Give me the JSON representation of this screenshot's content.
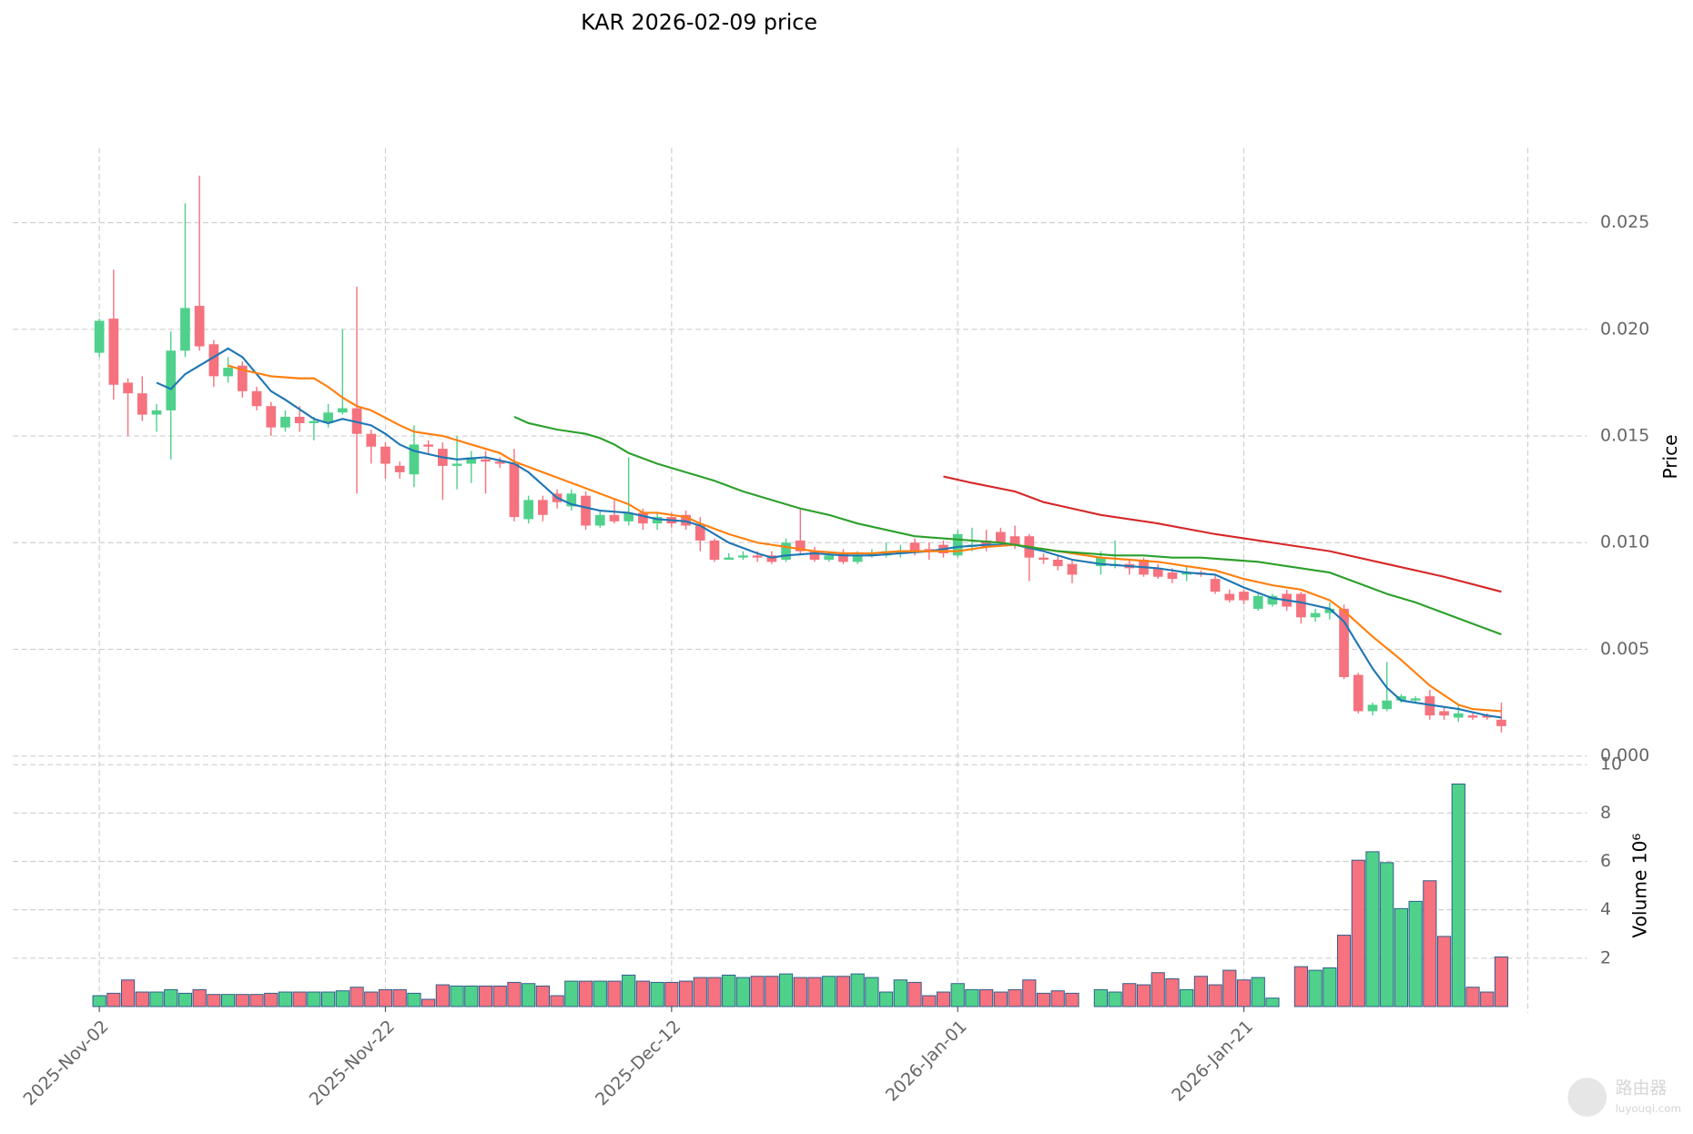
{
  "chart_data": {
    "type": "candlestick",
    "title": "KAR  2026-02-09  price",
    "ylabel": "Price",
    "grid": true,
    "up_color": "#4fd18b",
    "down_color": "#f5727e",
    "x": [
      "2025-Nov-02",
      "2025-Nov-03",
      "2025-Nov-04",
      "2025-Nov-05",
      "2025-Nov-06",
      "2025-Nov-07",
      "2025-Nov-08",
      "2025-Nov-09",
      "2025-Nov-10",
      "2025-Nov-11",
      "2025-Nov-12",
      "2025-Nov-13",
      "2025-Nov-14",
      "2025-Nov-15",
      "2025-Nov-16",
      "2025-Nov-17",
      "2025-Nov-18",
      "2025-Nov-19",
      "2025-Nov-20",
      "2025-Nov-21",
      "2025-Nov-22",
      "2025-Nov-23",
      "2025-Nov-24",
      "2025-Nov-25",
      "2025-Nov-26",
      "2025-Nov-27",
      "2025-Nov-28",
      "2025-Nov-29",
      "2025-Nov-30",
      "2025-Dec-01",
      "2025-Dec-02",
      "2025-Dec-03",
      "2025-Dec-04",
      "2025-Dec-05",
      "2025-Dec-06",
      "2025-Dec-07",
      "2025-Dec-08",
      "2025-Dec-09",
      "2025-Dec-10",
      "2025-Dec-11",
      "2025-Dec-12",
      "2025-Dec-13",
      "2025-Dec-14",
      "2025-Dec-15",
      "2025-Dec-16",
      "2025-Dec-17",
      "2025-Dec-18",
      "2025-Dec-19",
      "2025-Dec-20",
      "2025-Dec-21",
      "2025-Dec-22",
      "2025-Dec-23",
      "2025-Dec-24",
      "2025-Dec-25",
      "2025-Dec-26",
      "2025-Dec-27",
      "2025-Dec-28",
      "2025-Dec-29",
      "2025-Dec-30",
      "2025-Dec-31",
      "2026-Jan-01",
      "2026-Jan-02",
      "2026-Jan-03",
      "2026-Jan-04",
      "2026-Jan-05",
      "2026-Jan-06",
      "2026-Jan-07",
      "2026-Jan-08",
      "2026-Jan-09",
      "2026-Jan-10",
      "2026-Jan-11",
      "2026-Jan-12",
      "2026-Jan-13",
      "2026-Jan-14",
      "2026-Jan-15",
      "2026-Jan-16",
      "2026-Jan-17",
      "2026-Jan-18",
      "2026-Jan-19",
      "2026-Jan-20",
      "2026-Jan-21",
      "2026-Jan-22",
      "2026-Jan-23",
      "2026-Jan-24",
      "2026-Jan-25",
      "2026-Jan-26",
      "2026-Jan-27",
      "2026-Jan-28",
      "2026-Jan-29",
      "2026-Jan-30",
      "2026-Jan-31",
      "2026-Feb-01",
      "2026-Feb-02",
      "2026-Feb-03",
      "2026-Feb-04",
      "2026-Feb-05",
      "2026-Feb-06",
      "2026-Feb-07",
      "2026-Feb-08"
    ],
    "open": [
      0.0189,
      0.0205,
      0.0175,
      0.017,
      0.016,
      0.0162,
      0.019,
      0.0211,
      0.0193,
      0.0178,
      0.0183,
      0.0171,
      0.0164,
      0.0154,
      0.0159,
      0.0156,
      0.0156,
      0.0161,
      0.0163,
      0.0151,
      0.0145,
      0.0136,
      0.0132,
      0.0146,
      0.0144,
      0.0136,
      0.0137,
      0.0139,
      0.0138,
      0.0137,
      0.0111,
      0.012,
      0.0123,
      0.0117,
      0.0122,
      0.0108,
      0.0113,
      0.011,
      0.0114,
      0.0109,
      0.0112,
      0.0113,
      0.0108,
      0.0101,
      0.0092,
      0.0093,
      0.0094,
      0.0094,
      0.0092,
      0.0101,
      0.0096,
      0.0092,
      0.0095,
      0.0091,
      0.0094,
      0.0094,
      0.0095,
      0.01,
      0.0097,
      0.0099,
      0.0094,
      0.0098,
      0.0101,
      0.0105,
      0.0103,
      0.0103,
      0.0093,
      0.0092,
      0.009,
      null,
      0.0089,
      0.0089,
      0.009,
      0.0092,
      0.0088,
      0.0086,
      0.0085,
      0.0086,
      0.0083,
      0.0076,
      0.0077,
      0.0069,
      0.0071,
      0.0076,
      0.0076,
      0.0065,
      0.0067,
      0.0069,
      0.0038,
      0.0021,
      0.0022,
      0.0026,
      0.0026,
      0.0028,
      0.0021,
      0.0018,
      0.0019,
      0.0019,
      0.0017
    ],
    "high": [
      0.0205,
      0.0228,
      0.0177,
      0.0178,
      0.0165,
      0.0199,
      0.0259,
      0.0272,
      0.0195,
      0.0187,
      0.0185,
      0.0173,
      0.0166,
      0.0162,
      0.0164,
      0.0159,
      0.0165,
      0.02,
      0.022,
      0.0153,
      0.0147,
      0.0138,
      0.0155,
      0.0148,
      0.0147,
      0.015,
      0.0143,
      0.0143,
      0.014,
      0.0144,
      0.0122,
      0.0122,
      0.0125,
      0.0125,
      0.0124,
      0.0115,
      0.012,
      0.014,
      0.0116,
      0.0114,
      0.0114,
      0.0115,
      0.0112,
      0.0102,
      0.0095,
      0.0096,
      0.0096,
      0.0096,
      0.0102,
      0.0116,
      0.0098,
      0.0096,
      0.0097,
      0.0096,
      0.0097,
      0.01,
      0.0099,
      0.0102,
      0.01,
      0.0101,
      0.0106,
      0.0107,
      0.0106,
      0.0107,
      0.0108,
      0.0104,
      0.0095,
      0.0094,
      0.0092,
      null,
      0.0096,
      0.0101,
      0.0092,
      0.0093,
      0.009,
      0.0088,
      0.0089,
      0.0087,
      0.0085,
      0.0078,
      0.0078,
      0.0076,
      0.0076,
      0.0078,
      0.0077,
      0.0069,
      0.0072,
      0.0071,
      0.0039,
      0.0025,
      0.0044,
      0.0029,
      0.0028,
      0.0031,
      0.0023,
      0.0024,
      0.002,
      0.002,
      0.0025
    ],
    "low": [
      0.0187,
      0.0167,
      0.015,
      0.0157,
      0.0152,
      0.0139,
      0.0187,
      0.019,
      0.0173,
      0.0175,
      0.0168,
      0.0162,
      0.015,
      0.0152,
      0.0152,
      0.0148,
      0.0154,
      0.016,
      0.0123,
      0.0137,
      0.013,
      0.013,
      0.0126,
      0.0142,
      0.012,
      0.0125,
      0.0128,
      0.0123,
      0.0135,
      0.011,
      0.0109,
      0.011,
      0.0116,
      0.0115,
      0.0106,
      0.0107,
      0.0109,
      0.0108,
      0.0106,
      0.0106,
      0.0107,
      0.0106,
      0.0096,
      0.0091,
      0.0092,
      0.0092,
      0.0091,
      0.009,
      0.0091,
      0.0094,
      0.0091,
      0.0091,
      0.009,
      0.009,
      0.0093,
      0.0093,
      0.0093,
      0.0094,
      0.0092,
      0.0093,
      0.0093,
      0.0096,
      0.0096,
      0.0098,
      0.0097,
      0.0082,
      0.009,
      0.0087,
      0.0081,
      null,
      0.0085,
      0.0088,
      0.0085,
      0.0084,
      0.0083,
      0.0081,
      0.0082,
      0.0084,
      0.0076,
      0.0072,
      0.0071,
      0.0068,
      0.007,
      0.0068,
      0.0062,
      0.0063,
      0.0064,
      0.0036,
      0.002,
      0.0019,
      0.0021,
      0.0025,
      0.0025,
      0.0017,
      0.0017,
      0.0016,
      0.0017,
      0.0017,
      0.0011
    ],
    "close": [
      0.0204,
      0.0174,
      0.017,
      0.016,
      0.0162,
      0.019,
      0.021,
      0.0192,
      0.0178,
      0.0182,
      0.0171,
      0.0164,
      0.0154,
      0.0159,
      0.0156,
      0.0157,
      0.0161,
      0.0163,
      0.0151,
      0.0145,
      0.0137,
      0.0133,
      0.0146,
      0.0145,
      0.0136,
      0.0137,
      0.014,
      0.0138,
      0.0137,
      0.0112,
      0.012,
      0.0113,
      0.0119,
      0.0123,
      0.0108,
      0.0113,
      0.011,
      0.0114,
      0.0109,
      0.0112,
      0.0109,
      0.0108,
      0.0101,
      0.0092,
      0.0093,
      0.0094,
      0.0093,
      0.0091,
      0.01,
      0.0096,
      0.0092,
      0.0094,
      0.0091,
      0.0094,
      0.0095,
      0.0096,
      0.0096,
      0.0096,
      0.0096,
      0.0095,
      0.0104,
      0.0099,
      0.0098,
      0.01,
      0.0099,
      0.0093,
      0.0092,
      0.0089,
      0.0085,
      null,
      0.0093,
      0.009,
      0.0088,
      0.0085,
      0.0084,
      0.0083,
      0.0086,
      0.0085,
      0.0077,
      0.0073,
      0.0073,
      0.0075,
      0.0075,
      0.007,
      0.0065,
      0.0067,
      0.0069,
      0.0037,
      0.0021,
      0.0024,
      0.0026,
      0.0028,
      0.0027,
      0.0019,
      0.0019,
      0.002,
      0.0018,
      0.0018,
      0.0014
    ],
    "ylim": [
      0,
      0.0285
    ],
    "yticks": [
      {
        "value": 0,
        "label": "0.000"
      },
      0.005,
      {
        "value": 0.01,
        "label": "0.010"
      },
      0.015,
      {
        "value": 0.02,
        "label": "0.020"
      },
      0.025
    ],
    "xticks": [
      "2025-Nov-02",
      "2025-Nov-22",
      "2025-Dec-12",
      "2026-Jan-01",
      "2026-Jan-21"
    ],
    "moving_averages": [
      {
        "color": "#1f77b4",
        "x": [
          "2025-Nov-06",
          "2025-Nov-07",
          "2025-Nov-08",
          "2025-Nov-09",
          "2025-Nov-11",
          "2025-Nov-12",
          "2025-Nov-14",
          "2025-Nov-15",
          "2025-Nov-17",
          "2025-Nov-18",
          "2025-Nov-19",
          "2025-Nov-21",
          "2025-Nov-22",
          "2025-Nov-23",
          "2025-Nov-24",
          "2025-Nov-26",
          "2025-Nov-27",
          "2025-Nov-29",
          "2025-Dec-01",
          "2025-Dec-02",
          "2025-Dec-04",
          "2025-Dec-05",
          "2025-Dec-07",
          "2025-Dec-09",
          "2025-Dec-11",
          "2025-Dec-13",
          "2025-Dec-14",
          "2025-Dec-16",
          "2025-Dec-18",
          "2025-Dec-19",
          "2025-Dec-20",
          "2025-Dec-22",
          "2025-Dec-24",
          "2025-Dec-26",
          "2025-Dec-28",
          "2025-Dec-30",
          "2026-Jan-01",
          "2026-Jan-03",
          "2026-Jan-05",
          "2026-Jan-07",
          "2026-Jan-09",
          "2026-Jan-11",
          "2026-Jan-13",
          "2026-Jan-15",
          "2026-Jan-17",
          "2026-Jan-19",
          "2026-Jan-21",
          "2026-Jan-23",
          "2026-Jan-25",
          "2026-Jan-27",
          "2026-Jan-28",
          "2026-Jan-29",
          "2026-Jan-30",
          "2026-Jan-31",
          "2026-Feb-01",
          "2026-Feb-03",
          "2026-Feb-05",
          "2026-Feb-07",
          "2026-Feb-08"
        ],
        "values": [
          0.0175,
          0.0172,
          0.0179,
          0.0183,
          0.0191,
          0.0187,
          0.0171,
          0.0167,
          0.0158,
          0.0156,
          0.0158,
          0.0155,
          0.0151,
          0.0146,
          0.0143,
          0.014,
          0.0139,
          0.014,
          0.0137,
          0.0133,
          0.0121,
          0.0118,
          0.0115,
          0.0114,
          0.0111,
          0.011,
          0.0108,
          0.01,
          0.0095,
          0.0093,
          0.0094,
          0.0095,
          0.0094,
          0.0094,
          0.0095,
          0.0096,
          0.0098,
          0.0099,
          0.0099,
          0.0096,
          0.0092,
          0.009,
          0.0089,
          0.0088,
          0.0086,
          0.0085,
          0.0079,
          0.0074,
          0.0072,
          0.0069,
          0.0063,
          0.0052,
          0.0041,
          0.0032,
          0.0026,
          0.0024,
          0.0022,
          0.0019,
          0.0018
        ]
      },
      {
        "color": "#ff7f0e",
        "x": [
          "2025-Nov-11",
          "2025-Nov-12",
          "2025-Nov-14",
          "2025-Nov-16",
          "2025-Nov-17",
          "2025-Nov-18",
          "2025-Nov-19",
          "2025-Nov-20",
          "2025-Nov-21",
          "2025-Nov-23",
          "2025-Nov-24",
          "2025-Nov-26",
          "2025-Nov-28",
          "2025-Nov-30",
          "2025-Dec-01",
          "2025-Dec-03",
          "2025-Dec-05",
          "2025-Dec-07",
          "2025-Dec-09",
          "2025-Dec-10",
          "2025-Dec-11",
          "2025-Dec-13",
          "2025-Dec-14",
          "2025-Dec-16",
          "2025-Dec-18",
          "2025-Dec-20",
          "2025-Dec-22",
          "2025-Dec-24",
          "2025-Dec-26",
          "2025-Dec-28",
          "2025-Dec-30",
          "2026-Jan-01",
          "2026-Jan-03",
          "2026-Jan-05",
          "2026-Jan-07",
          "2026-Jan-09",
          "2026-Jan-11",
          "2026-Jan-13",
          "2026-Jan-15",
          "2026-Jan-17",
          "2026-Jan-19",
          "2026-Jan-21",
          "2026-Jan-23",
          "2026-Jan-25",
          "2026-Jan-27",
          "2026-Jan-28",
          "2026-Jan-30",
          "2026-Feb-01",
          "2026-Feb-03",
          "2026-Feb-05",
          "2026-Feb-06",
          "2026-Feb-08"
        ],
        "values": [
          0.0183,
          0.0181,
          0.0178,
          0.0177,
          0.0177,
          0.0173,
          0.0168,
          0.0164,
          0.0162,
          0.0155,
          0.0152,
          0.015,
          0.0146,
          0.0142,
          0.0138,
          0.0133,
          0.0128,
          0.0123,
          0.0118,
          0.0114,
          0.0114,
          0.0112,
          0.0109,
          0.0104,
          0.01,
          0.0098,
          0.0096,
          0.0095,
          0.0095,
          0.0096,
          0.0096,
          0.0096,
          0.0098,
          0.0099,
          0.0097,
          0.0095,
          0.0093,
          0.0092,
          0.0091,
          0.0089,
          0.0087,
          0.0083,
          0.008,
          0.0078,
          0.0073,
          0.0068,
          0.0056,
          0.0045,
          0.0033,
          0.0024,
          0.0022,
          0.0021
        ]
      },
      {
        "color": "#2ca02c",
        "x": [
          "2025-Dec-01",
          "2025-Dec-02",
          "2025-Dec-04",
          "2025-Dec-06",
          "2025-Dec-07",
          "2025-Dec-08",
          "2025-Dec-09",
          "2025-Dec-11",
          "2025-Dec-13",
          "2025-Dec-15",
          "2025-Dec-17",
          "2025-Dec-19",
          "2025-Dec-21",
          "2025-Dec-23",
          "2025-Dec-25",
          "2025-Dec-27",
          "2025-Dec-29",
          "2025-Dec-31",
          "2026-Jan-02",
          "2026-Jan-04",
          "2026-Jan-06",
          "2026-Jan-08",
          "2026-Jan-10",
          "2026-Jan-12",
          "2026-Jan-14",
          "2026-Jan-16",
          "2026-Jan-18",
          "2026-Jan-20",
          "2026-Jan-22",
          "2026-Jan-24",
          "2026-Jan-27",
          "2026-Jan-29",
          "2026-Jan-31",
          "2026-Feb-02",
          "2026-Feb-04",
          "2026-Feb-06",
          "2026-Feb-08"
        ],
        "values": [
          0.0159,
          0.0156,
          0.0153,
          0.0151,
          0.0149,
          0.0146,
          0.0142,
          0.0137,
          0.0133,
          0.0129,
          0.0124,
          0.012,
          0.0116,
          0.0113,
          0.0109,
          0.0106,
          0.0103,
          0.0102,
          0.0101,
          0.01,
          0.0098,
          0.0096,
          0.0095,
          0.0094,
          0.0094,
          0.0093,
          0.0093,
          0.0092,
          0.0091,
          0.0089,
          0.0086,
          0.0081,
          0.0076,
          0.0072,
          0.0067,
          0.0062,
          0.0057
        ]
      },
      {
        "color": "#d62728",
        "x": [
          "2025-Dec-31",
          "2026-Jan-02",
          "2026-Jan-05",
          "2026-Jan-07",
          "2026-Jan-09",
          "2026-Jan-11",
          "2026-Jan-15",
          "2026-Jan-19",
          "2026-Jan-23",
          "2026-Jan-27",
          "2026-Jan-31",
          "2026-Feb-04",
          "2026-Feb-08"
        ],
        "values": [
          0.0131,
          0.0128,
          0.0124,
          0.0119,
          0.0116,
          0.0113,
          0.0109,
          0.0104,
          0.01,
          0.0096,
          0.009,
          0.0084,
          0.0077
        ]
      }
    ],
    "volume": {
      "type": "bar",
      "ylabel": "Volume  10⁶",
      "edge_color": "#2a5a8a",
      "values": [
        0.45,
        0.55,
        1.1,
        0.6,
        0.6,
        0.7,
        0.55,
        0.7,
        0.5,
        0.5,
        0.5,
        0.5,
        0.55,
        0.6,
        0.6,
        0.6,
        0.6,
        0.65,
        0.8,
        0.6,
        0.7,
        0.7,
        0.55,
        0.3,
        0.9,
        0.85,
        0.85,
        0.85,
        0.85,
        1.0,
        0.95,
        0.85,
        0.45,
        1.05,
        1.05,
        1.05,
        1.05,
        1.3,
        1.05,
        1.0,
        1.0,
        1.05,
        1.2,
        1.2,
        1.3,
        1.2,
        1.25,
        1.25,
        1.35,
        1.2,
        1.2,
        1.25,
        1.25,
        1.35,
        1.2,
        0.6,
        1.1,
        1.0,
        0.45,
        0.6,
        0.95,
        0.7,
        0.7,
        0.6,
        0.7,
        1.1,
        0.55,
        0.65,
        0.55,
        null,
        0.7,
        0.6,
        0.95,
        0.9,
        1.4,
        1.15,
        0.7,
        1.25,
        0.9,
        1.5,
        1.1,
        1.2,
        0.35,
        null,
        1.65,
        1.5,
        1.6,
        2.95,
        6.05,
        6.4,
        5.95,
        4.05,
        4.35,
        5.2,
        2.9,
        9.2,
        0.8,
        0.6,
        2.05
      ],
      "ylim": [
        0,
        10
      ],
      "yticks": [
        2,
        4,
        6,
        8,
        10
      ]
    },
    "watermark": [
      "路由器",
      "luyouqi.com"
    ]
  }
}
